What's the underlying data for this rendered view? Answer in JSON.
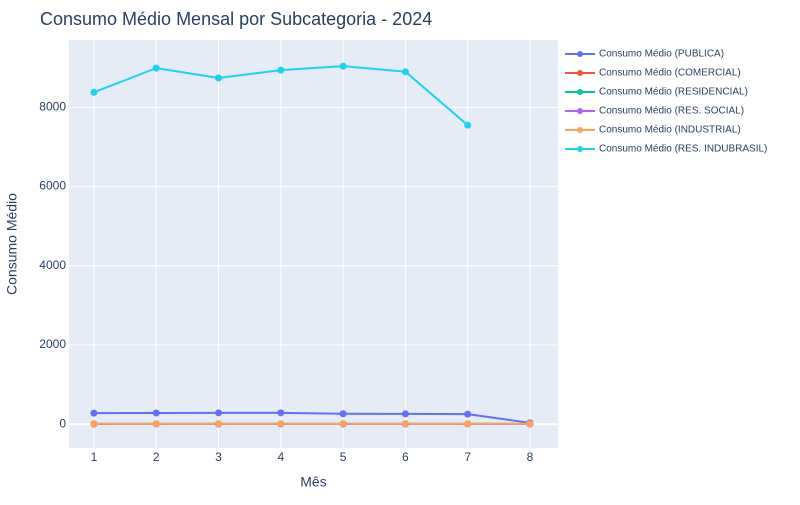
{
  "chart_data": {
    "type": "line",
    "title": "Consumo Médio Mensal por Subcategoria - 2024",
    "xlabel": "Mês",
    "ylabel": "Consumo Médio",
    "x": [
      1,
      2,
      3,
      4,
      5,
      6,
      7,
      8
    ],
    "xlim": [
      0.6,
      8.45
    ],
    "ylim": [
      -600,
      9700
    ],
    "yticks": [
      0,
      2000,
      4000,
      6000,
      8000
    ],
    "grid": true,
    "legend_position": "right",
    "series": [
      {
        "name": "Consumo Médio (PUBLICA)",
        "color": "#636efa",
        "values": [
          280,
          285,
          288,
          288,
          265,
          260,
          255,
          35
        ]
      },
      {
        "name": "Consumo Médio (COMERCIAL)",
        "color": "#ef553b",
        "values": [
          10,
          10,
          10,
          10,
          10,
          10,
          10,
          10
        ]
      },
      {
        "name": "Consumo Médio (RESIDENCIAL)",
        "color": "#00cc96",
        "values": [
          8,
          8,
          8,
          8,
          8,
          8,
          8,
          8
        ]
      },
      {
        "name": "Consumo Médio (RES. SOCIAL)",
        "color": "#ab63fa",
        "values": [
          6,
          6,
          6,
          6,
          6,
          6,
          6,
          6
        ]
      },
      {
        "name": "Consumo Médio (INDUSTRIAL)",
        "color": "#ffa15a",
        "values": [
          12,
          12,
          12,
          12,
          12,
          12,
          12,
          12
        ]
      },
      {
        "name": "Consumo Médio (RES. INDUBRASIL)",
        "color": "#19d3f3",
        "values": [
          8380,
          8990,
          8740,
          8940,
          9040,
          8900,
          7550,
          null
        ]
      }
    ]
  },
  "colors": {
    "plot_bg": "#e5ecf6",
    "grid": "#ffffff",
    "text": "#2a3f5f"
  }
}
